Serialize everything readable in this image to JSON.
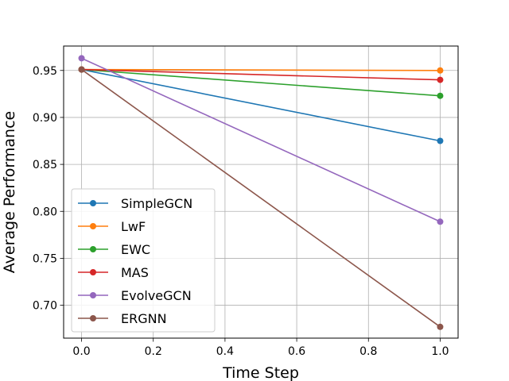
{
  "chart_data": {
    "type": "line",
    "title": "",
    "xlabel": "Time Step",
    "ylabel": "Average Performance",
    "x": [
      0.0,
      1.0
    ],
    "xlim": [
      -0.05,
      1.05
    ],
    "ylim": [
      0.665,
      0.976
    ],
    "xticks": [
      0.0,
      0.2,
      0.4,
      0.6,
      0.8,
      1.0
    ],
    "xtick_labels": [
      "0.0",
      "0.2",
      "0.4",
      "0.6",
      "0.8",
      "1.0"
    ],
    "yticks": [
      0.7,
      0.75,
      0.8,
      0.85,
      0.9,
      0.95
    ],
    "ytick_labels": [
      "0.70",
      "0.75",
      "0.80",
      "0.85",
      "0.90",
      "0.95"
    ],
    "grid": true,
    "legend_position": "lower-left",
    "series": [
      {
        "name": "SimpleGCN",
        "color": "#1f77b4",
        "values": [
          0.951,
          0.875
        ]
      },
      {
        "name": "LwF",
        "color": "#ff7f0e",
        "values": [
          0.951,
          0.95
        ]
      },
      {
        "name": "EWC",
        "color": "#2ca02c",
        "values": [
          0.951,
          0.923
        ]
      },
      {
        "name": "MAS",
        "color": "#d62728",
        "values": [
          0.951,
          0.94
        ]
      },
      {
        "name": "EvolveGCN",
        "color": "#9467bd",
        "values": [
          0.963,
          0.789
        ]
      },
      {
        "name": "ERGNN",
        "color": "#8c564b",
        "values": [
          0.951,
          0.677
        ]
      }
    ]
  }
}
